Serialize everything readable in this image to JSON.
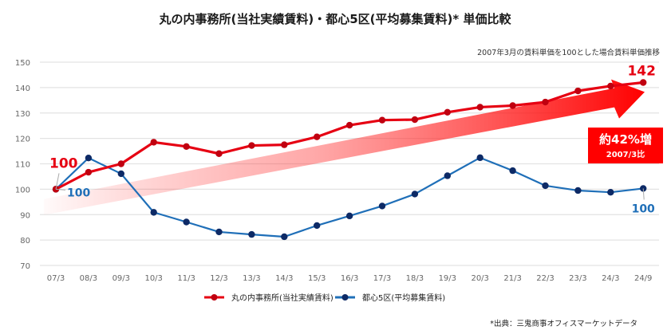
{
  "chart_data": {
    "type": "line",
    "title": "丸の内事務所(当社実績賃料)・都心5区(平均募集賃料)* 単価比較",
    "subtitle": "2007年3月の賃料単価を100とした場合賃料単価推移",
    "xlabel": "",
    "ylabel": "",
    "ylim": [
      70,
      150
    ],
    "yticks": [
      70,
      80,
      90,
      100,
      110,
      120,
      130,
      140,
      150
    ],
    "grid": true,
    "legend_position": "bottom",
    "categories": [
      "07/3",
      "08/3",
      "09/3",
      "10/3",
      "11/3",
      "12/3",
      "13/3",
      "14/3",
      "15/3",
      "16/3",
      "17/3",
      "18/3",
      "19/3",
      "20/3",
      "21/3",
      "22/3",
      "23/3",
      "24/3",
      "24/9"
    ],
    "series": [
      {
        "name": "丸の内事務所(当社実績賃料)",
        "color": "#e60012",
        "marker_color": "#c00010",
        "values": [
          100,
          106.7,
          110.0,
          118.5,
          116.8,
          114.0,
          117.2,
          117.5,
          120.6,
          125.2,
          127.2,
          127.4,
          130.3,
          132.3,
          132.9,
          134.3,
          138.7,
          140.6,
          142
        ]
      },
      {
        "name": "都心5区(平均募集賃料)",
        "color": "#1f6fb8",
        "marker_color": "#0d2a66",
        "values": [
          100,
          112.3,
          106.1,
          90.9,
          87.1,
          83.2,
          82.2,
          81.3,
          85.7,
          89.5,
          93.4,
          98.1,
          105.3,
          112.4,
          107.3,
          101.4,
          99.5,
          98.8,
          100.3
        ]
      }
    ],
    "data_labels": [
      {
        "series": 0,
        "index": 0,
        "text": "100"
      },
      {
        "series": 1,
        "index": 0,
        "text": "100"
      },
      {
        "series": 0,
        "index": 18,
        "text": "142"
      },
      {
        "series": 1,
        "index": 18,
        "text": "100"
      }
    ],
    "annotations": {
      "trend_arrow": {
        "from_value": 93,
        "to_value": 136,
        "color": "#ff0000",
        "meaning": "growth trend"
      },
      "callout": {
        "main": "約42%増",
        "sub": "2007/3比",
        "color": "#ff0000"
      }
    },
    "source_note": "*出典：三鬼商事オフィスマーケットデータ"
  }
}
